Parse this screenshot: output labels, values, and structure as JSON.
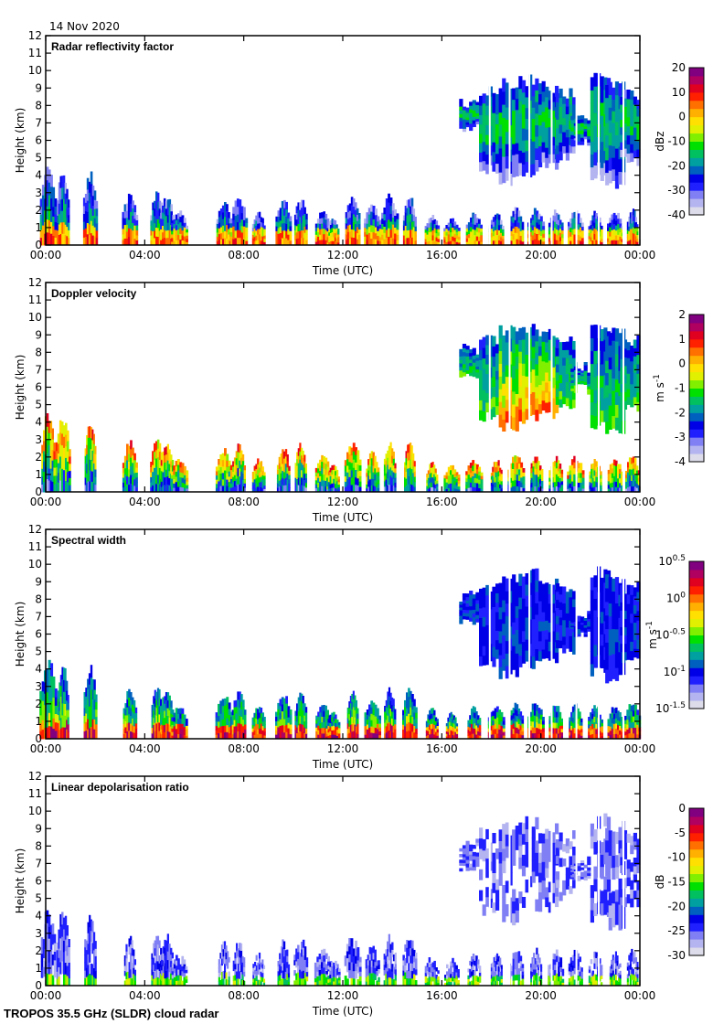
{
  "date": "14 Nov 2020",
  "footer": "TROPOS 35.5 GHz (SLDR) cloud radar",
  "chart_data": [
    {
      "type": "heatmap",
      "title": "Radar reflectivity factor",
      "xlabel": "Time (UTC)",
      "ylabel": "Height (km)",
      "xlim": [
        0,
        24
      ],
      "ylim": [
        0,
        12
      ],
      "xticks": [
        "00:00",
        "04:00",
        "08:00",
        "12:00",
        "16:00",
        "20:00",
        "00:00"
      ],
      "yticks": [
        "0",
        "1",
        "2",
        "3",
        "4",
        "5",
        "6",
        "7",
        "8",
        "9",
        "10",
        "11",
        "12"
      ],
      "colorbar": {
        "label": "dBz",
        "range": [
          -40,
          20
        ],
        "ticks": [
          "20",
          "10",
          "0",
          "-10",
          "-20",
          "-30",
          "-40"
        ]
      },
      "palette": "reflectivity"
    },
    {
      "type": "heatmap",
      "title": "Doppler velocity",
      "xlabel": "Time (UTC)",
      "ylabel": "Height (km)",
      "xlim": [
        0,
        24
      ],
      "ylim": [
        0,
        12
      ],
      "xticks": [
        "00:00",
        "04:00",
        "08:00",
        "12:00",
        "16:00",
        "20:00",
        "00:00"
      ],
      "yticks": [
        "0",
        "1",
        "2",
        "3",
        "4",
        "5",
        "6",
        "7",
        "8",
        "9",
        "10",
        "11",
        "12"
      ],
      "colorbar": {
        "label": "m s",
        "label_sup": "-1",
        "range": [
          -4,
          2
        ],
        "ticks": [
          "2",
          "1",
          "0",
          "-1",
          "-2",
          "-3",
          "-4"
        ]
      },
      "palette": "velocity"
    },
    {
      "type": "heatmap",
      "title": "Spectral width",
      "xlabel": "Time (UTC)",
      "ylabel": "Height (km)",
      "xlim": [
        0,
        24
      ],
      "ylim": [
        0,
        12
      ],
      "xticks": [
        "00:00",
        "04:00",
        "08:00",
        "12:00",
        "16:00",
        "20:00",
        "00:00"
      ],
      "yticks": [
        "0",
        "1",
        "2",
        "3",
        "4",
        "5",
        "6",
        "7",
        "8",
        "9",
        "10",
        "11",
        "12"
      ],
      "colorbar": {
        "label": "m s",
        "label_sup": "-1",
        "range": [
          -1.5,
          0.5
        ],
        "scale": "log10",
        "ticks": [
          {
            "base": "10",
            "exp": "0.5"
          },
          {
            "base": "10",
            "exp": "0"
          },
          {
            "base": "10",
            "exp": "-0.5"
          },
          {
            "base": "10",
            "exp": "-1"
          },
          {
            "base": "10",
            "exp": "-1.5"
          }
        ]
      },
      "palette": "width"
    },
    {
      "type": "heatmap",
      "title": "Linear depolarisation ratio",
      "xlabel": "Time (UTC)",
      "ylabel": "Height (km)",
      "xlim": [
        0,
        24
      ],
      "ylim": [
        0,
        12
      ],
      "xticks": [
        "00:00",
        "04:00",
        "08:00",
        "12:00",
        "16:00",
        "20:00",
        "00:00"
      ],
      "yticks": [
        "0",
        "1",
        "2",
        "3",
        "4",
        "5",
        "6",
        "7",
        "8",
        "9",
        "10",
        "11",
        "12"
      ],
      "colorbar": {
        "label": "dB",
        "range": [
          -30,
          0
        ],
        "ticks": [
          "0",
          "-5",
          "-10",
          "-15",
          "-20",
          "-25",
          "-30"
        ]
      },
      "palette": "ldr"
    }
  ],
  "colormap": [
    "#dcdcea",
    "#b4b4f0",
    "#8080f4",
    "#2020ff",
    "#0000e6",
    "#0060c0",
    "#00a0a0",
    "#00c060",
    "#00e000",
    "#80f000",
    "#e0f000",
    "#ffe000",
    "#ffb000",
    "#ff7000",
    "#ff2000",
    "#e00020",
    "#b00060",
    "#800080"
  ],
  "clouds": {
    "low": [
      [
        0.1,
        4.7
      ],
      [
        0.7,
        4.5
      ],
      [
        1.8,
        4.3
      ],
      [
        3.4,
        3.0
      ],
      [
        4.5,
        3.1
      ],
      [
        4.9,
        3.0
      ],
      [
        5.4,
        2.0
      ],
      [
        7.2,
        2.6
      ],
      [
        7.8,
        2.8
      ],
      [
        8.6,
        2.0
      ],
      [
        9.6,
        2.7
      ],
      [
        10.3,
        2.9
      ],
      [
        11.2,
        2.2
      ],
      [
        11.6,
        1.6
      ],
      [
        12.4,
        3.0
      ],
      [
        13.2,
        2.4
      ],
      [
        13.9,
        3.0
      ],
      [
        14.7,
        3.0
      ],
      [
        15.6,
        1.8
      ],
      [
        16.4,
        1.6
      ],
      [
        17.3,
        1.9
      ],
      [
        18.2,
        2.0
      ],
      [
        19.0,
        2.2
      ],
      [
        19.8,
        2.2
      ],
      [
        20.6,
        2.1
      ],
      [
        21.4,
        2.1
      ],
      [
        22.2,
        2.0
      ],
      [
        23.0,
        2.0
      ],
      [
        23.7,
        2.2
      ]
    ],
    "high": [
      [
        17.1,
        6.4,
        8.5
      ],
      [
        17.9,
        4.0,
        9.1
      ],
      [
        18.7,
        3.4,
        9.6
      ],
      [
        19.5,
        3.9,
        9.8
      ],
      [
        20.3,
        4.2,
        9.4
      ],
      [
        21.0,
        4.7,
        9.0
      ],
      [
        21.6,
        5.6,
        7.5
      ],
      [
        22.4,
        3.6,
        9.9
      ],
      [
        23.0,
        3.1,
        9.5
      ],
      [
        23.6,
        4.5,
        9.0
      ]
    ]
  }
}
